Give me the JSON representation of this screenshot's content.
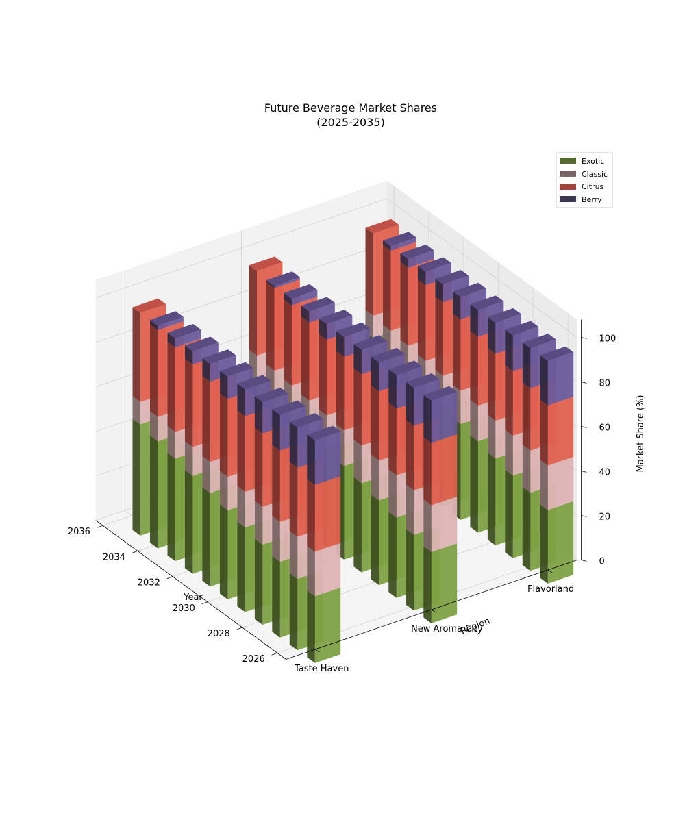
{
  "chart_data": {
    "type": "bar",
    "projection": "3d-stacked-bar",
    "title_line1": "Future Beverage Market Shares",
    "title_line2": "(2025-2035)",
    "xlabel": "Year",
    "ylabel": "Region",
    "zlabel": "Market Share (%)",
    "x_tick_labels": [
      "2026",
      "2028",
      "2030",
      "2032",
      "2034",
      "2036"
    ],
    "z_tick_labels": [
      "0",
      "20",
      "40",
      "60",
      "80",
      "100"
    ],
    "zlim": [
      0,
      100
    ],
    "years": [
      2025,
      2026,
      2027,
      2028,
      2029,
      2030,
      2031,
      2032,
      2033,
      2034,
      2035
    ],
    "regions": [
      "Taste Haven",
      "New Aroma City",
      "Flavorland"
    ],
    "legend": [
      "Exotic",
      "Classic",
      "Citrus",
      "Berry"
    ],
    "legend_position": "upper-right",
    "colors": {
      "Exotic": "#556b2f",
      "Classic": "#7a6464",
      "Citrus": "#a0453d",
      "Berry": "#3d3552"
    },
    "face_colors": {
      "Exotic": {
        "front": "#3d4f20",
        "side": "#7ea044",
        "top": "#6a8a38"
      },
      "Classic": {
        "front": "#7a6464",
        "side": "#dcb4b4",
        "top": "#b89a9a"
      },
      "Citrus": {
        "front": "#7b2f2a",
        "side": "#e0604f",
        "top": "#c05048"
      },
      "Berry": {
        "front": "#2f2840",
        "side": "#6a5a9a",
        "top": "#5a4c82"
      }
    },
    "series": [
      {
        "name": "Exotic",
        "values": {
          "Taste Haven": [
            30,
            32,
            34,
            36,
            38,
            40,
            42,
            44,
            46,
            48,
            50
          ],
          "New Aroma City": [
            32,
            34,
            36,
            38,
            40,
            42,
            44,
            46,
            48,
            50,
            52
          ],
          "Flavorland": [
            33,
            35,
            37,
            39,
            41,
            43,
            45,
            47,
            49,
            51,
            53
          ]
        }
      },
      {
        "name": "Classic",
        "values": {
          "Taste Haven": [
            20,
            19,
            18,
            17,
            16,
            15,
            14,
            13,
            12,
            11,
            10
          ],
          "New Aroma City": [
            21,
            20,
            19,
            18,
            17,
            16,
            15,
            14,
            13,
            12,
            11
          ],
          "Flavorland": [
            20,
            19,
            18,
            17,
            16,
            15,
            14,
            13,
            12,
            11,
            10
          ]
        }
      },
      {
        "name": "Citrus",
        "values": {
          "Taste Haven": [
            30,
            31,
            32,
            33,
            34,
            35,
            36,
            37,
            38,
            39,
            40
          ],
          "New Aroma City": [
            28,
            29,
            30,
            31,
            32,
            33,
            34,
            35,
            36,
            37,
            38
          ],
          "Flavorland": [
            27,
            28,
            29,
            30,
            31,
            32,
            33,
            34,
            35,
            36,
            37
          ]
        }
      },
      {
        "name": "Berry",
        "values": {
          "Taste Haven": [
            20,
            18,
            16,
            14,
            12,
            10,
            8,
            6,
            4,
            2,
            0
          ],
          "New Aroma City": [
            19,
            17,
            15,
            13,
            11,
            9,
            7,
            5,
            3,
            1,
            0
          ],
          "Flavorland": [
            20,
            18,
            16,
            14,
            12,
            10,
            8,
            6,
            4,
            2,
            0
          ]
        }
      }
    ],
    "grid": true
  }
}
